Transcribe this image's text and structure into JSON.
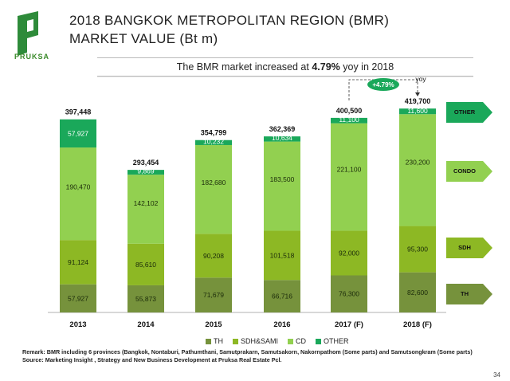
{
  "header": {
    "logo_text": "PRUKSA",
    "title_line1": "2018 BANGKOK METROPOLITAN REGION (BMR)",
    "title_line2": "MARKET VALUE (Bt m)"
  },
  "subtitle": {
    "prefix": "The BMR market increased at ",
    "highlight": "4.79%",
    "suffix": " yoy in 2018"
  },
  "growth_badge": {
    "label": "+4.79%",
    "yoy_label": "yoy"
  },
  "colors": {
    "TH": "#76923c",
    "SDH": "#8db824",
    "CD": "#92d050",
    "OTHER": "#1aa85a"
  },
  "chart_data": {
    "type": "bar",
    "stacked": true,
    "categories": [
      "2013",
      "2014",
      "2015",
      "2016",
      "2017 (F)",
      "2018 (F)"
    ],
    "series": [
      {
        "name": "TH",
        "values": [
          57927,
          55873,
          71679,
          66716,
          76300,
          82600
        ]
      },
      {
        "name": "SDH&SAMI",
        "values": [
          91124,
          85610,
          90208,
          101518,
          92000,
          95300
        ]
      },
      {
        "name": "CD",
        "values": [
          190470,
          142102,
          182680,
          183500,
          221100,
          230200
        ]
      },
      {
        "name": "OTHER",
        "values": [
          57927,
          9869,
          10232,
          10634,
          11100,
          11600
        ]
      }
    ],
    "value_labels": [
      [
        "57,927",
        "55,873",
        "71,679",
        "66,716",
        "76,300",
        "82,600"
      ],
      [
        "91,124",
        "85,610",
        "90,208",
        "101,518",
        "92,000",
        "95,300"
      ],
      [
        "190,470",
        "142,102",
        "182,680",
        "183,500",
        "221,100",
        "230,200"
      ],
      [
        "57,927",
        "9,869",
        "10,232",
        "10,634",
        "11,100",
        "11,600"
      ]
    ],
    "totals": [
      397448,
      293454,
      354799,
      362369,
      400500,
      419700
    ],
    "total_labels": [
      "397,448",
      "293,454",
      "354,799",
      "362,369",
      "400,500",
      "419,700"
    ],
    "ylim": [
      0,
      420000
    ],
    "legend_position": "bottom",
    "legend": [
      "TH",
      "SDH&SAMI",
      "CD",
      "OTHER"
    ]
  },
  "side_tags": [
    "OTHER",
    "CONDO",
    "SDH",
    "TH"
  ],
  "remark": "Remark: BMR including 6 provinces (Bangkok, Nontaburi, Pathumthani, Samutprakarn, Samutsakorn, Nakornpathom (Some parts) and Samutsongkram (Some parts)",
  "source": "Source: Marketing Insight , Strategy and New Business Development at Pruksa Real Estate Pcl.",
  "page_number": "34"
}
